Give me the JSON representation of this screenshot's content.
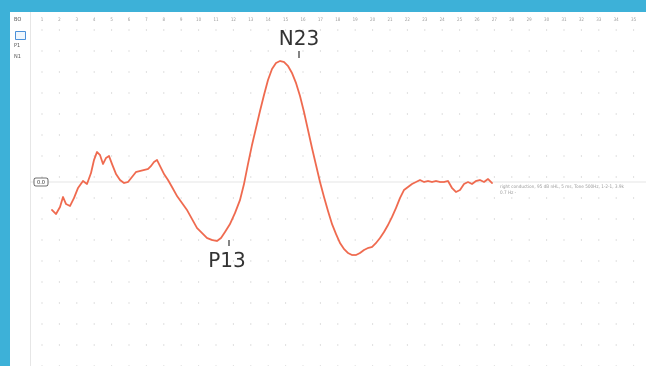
{
  "sidebar": {
    "label_top": "BO",
    "label_p1": "P1",
    "label_n1": "N1"
  },
  "baseline_badge": "0.0",
  "x_ticks": [
    "1",
    "2",
    "3",
    "4",
    "5",
    "6",
    "7",
    "8",
    "9",
    "10",
    "11",
    "12",
    "13",
    "14",
    "15",
    "16",
    "17",
    "18",
    "19",
    "20",
    "21",
    "22",
    "23",
    "24",
    "25",
    "26",
    "27",
    "28",
    "29",
    "30",
    "31",
    "32",
    "33",
    "34",
    "35",
    "36"
  ],
  "peaks": {
    "p13": "P13",
    "n23": "N23"
  },
  "annotation": {
    "line1": "right conduction, 95 dB nHL, 5 ms, Tone 500Hz, 1-2-1, 3.9k",
    "line2": "0.7 Hz -"
  },
  "colors": {
    "frame": "#3db1d8",
    "trace": "#ef6a4f",
    "grid_dot": "#c9c9c9",
    "baseline": "#dddddd"
  }
}
